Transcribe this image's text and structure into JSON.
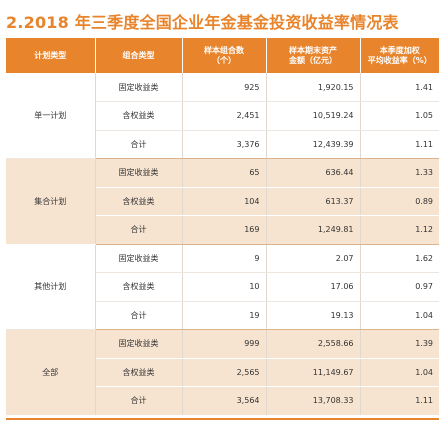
{
  "title": "2.2018 年三季度全国企业年金基金投资收益率情况表",
  "header": {
    "plan_type": "计划类型",
    "portfolio_type": "组合类型",
    "sample_count_line1": "样本组合数",
    "sample_count_line2": "（个）",
    "assets_line1": "样本期末资产",
    "assets_line2": "金额（亿元）",
    "yield_line1": "本季度加权",
    "yield_line2": "平均收益率（%）"
  },
  "groups": [
    {
      "name": "单一计划",
      "rows": [
        {
          "type": "固定收益类",
          "count": "925",
          "assets": "1,920.15",
          "yield": "1.41"
        },
        {
          "type": "含权益类",
          "count": "2,451",
          "assets": "10,519.24",
          "yield": "1.05"
        },
        {
          "type": "合计",
          "count": "3,376",
          "assets": "12,439.39",
          "yield": "1.11"
        }
      ]
    },
    {
      "name": "集合计划",
      "rows": [
        {
          "type": "固定收益类",
          "count": "65",
          "assets": "636.44",
          "yield": "1.33"
        },
        {
          "type": "含权益类",
          "count": "104",
          "assets": "613.37",
          "yield": "0.89"
        },
        {
          "type": "合计",
          "count": "169",
          "assets": "1,249.81",
          "yield": "1.12"
        }
      ]
    },
    {
      "name": "其他计划",
      "rows": [
        {
          "type": "固定收益类",
          "count": "9",
          "assets": "2.07",
          "yield": "1.62"
        },
        {
          "type": "含权益类",
          "count": "10",
          "assets": "17.06",
          "yield": "0.97"
        },
        {
          "type": "合计",
          "count": "19",
          "assets": "19.13",
          "yield": "1.04"
        }
      ]
    },
    {
      "name": "全部",
      "rows": [
        {
          "type": "固定收益类",
          "count": "999",
          "assets": "2,558.66",
          "yield": "1.39"
        },
        {
          "type": "含权益类",
          "count": "2,565",
          "assets": "11,149.67",
          "yield": "1.04"
        },
        {
          "type": "合计",
          "count": "3,564",
          "assets": "13,708.33",
          "yield": "1.11"
        }
      ]
    }
  ],
  "colors": {
    "accent": "#e8842c",
    "band": "#f7e4d0"
  }
}
